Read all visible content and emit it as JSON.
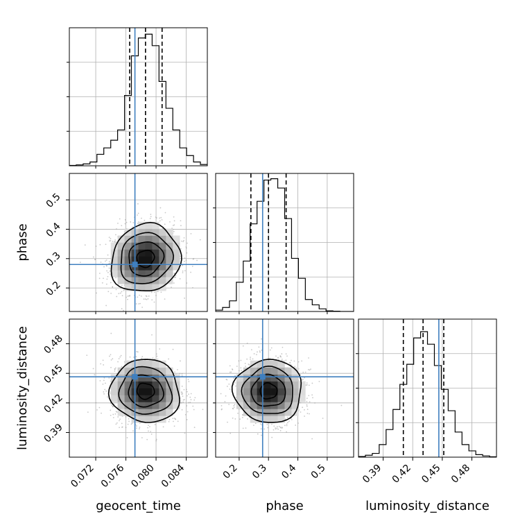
{
  "colors": {
    "background": "#ffffff",
    "truth": "#3f7fbf",
    "contour": "#000000",
    "grid": "#b0b0b0",
    "points": "#9a9a9a"
  },
  "chart_data": {
    "type": "corner",
    "grid": true,
    "parameters": [
      {
        "name": "geocent_time",
        "label": "geocent_time",
        "range": [
          0.0685,
          0.0868
        ],
        "ticks": [
          0.072,
          0.076,
          0.08,
          0.084
        ],
        "tick_labels": [
          "0.072",
          "0.076",
          "0.080",
          "0.084"
        ],
        "truth": 0.0772,
        "quantiles": [
          0.0765,
          0.0786,
          0.0808
        ],
        "histogram": {
          "edges": [
            0.0685,
            0.06941,
            0.07033,
            0.07124,
            0.07216,
            0.07307,
            0.07399,
            0.0749,
            0.07582,
            0.07673,
            0.07765,
            0.07856,
            0.07948,
            0.08039,
            0.08131,
            0.08222,
            0.08314,
            0.08405,
            0.08497,
            0.08588,
            0.0868
          ],
          "counts": [
            0.3,
            0.7,
            1.5,
            3,
            9,
            14,
            20,
            28,
            55,
            86,
            100,
            103,
            94,
            66,
            45,
            28,
            14,
            8,
            3,
            1
          ],
          "ylim": [
            0,
            108
          ]
        }
      },
      {
        "name": "phase",
        "label": "phase",
        "range": [
          0.12,
          0.59
        ],
        "ticks": [
          0.2,
          0.3,
          0.4,
          0.5
        ],
        "tick_labels": [
          "0.2",
          "0.3",
          "0.4",
          "0.5"
        ],
        "truth": 0.28,
        "quantiles": [
          0.24,
          0.3,
          0.36
        ],
        "histogram": {
          "edges": [
            0.12,
            0.1435,
            0.167,
            0.1905,
            0.214,
            0.2375,
            0.261,
            0.2845,
            0.308,
            0.3315,
            0.355,
            0.3785,
            0.402,
            0.4255,
            0.449,
            0.4725,
            0.496,
            0.5195,
            0.543,
            0.5665,
            0.59
          ],
          "counts": [
            1,
            3,
            8,
            22,
            38,
            66,
            83,
            99,
            100,
            93,
            70,
            40,
            25,
            9,
            5,
            2,
            0.5,
            0.2,
            0,
            0
          ],
          "ylim": [
            0,
            104
          ]
        }
      },
      {
        "name": "luminosity_distance",
        "label": "luminosity_distance",
        "range": [
          0.365,
          0.505
        ],
        "ticks": [
          0.39,
          0.42,
          0.45,
          0.48
        ],
        "tick_labels": [
          "0.39",
          "0.42",
          "0.45",
          "0.48"
        ],
        "truth": 0.4465,
        "quantiles": [
          0.4105,
          0.4305,
          0.4515
        ],
        "histogram": {
          "edges": [
            0.365,
            0.372,
            0.379,
            0.386,
            0.393,
            0.4,
            0.407,
            0.414,
            0.421,
            0.428,
            0.435,
            0.442,
            0.449,
            0.456,
            0.463,
            0.47,
            0.477,
            0.484,
            0.491,
            0.498,
            0.505
          ],
          "counts": [
            0.5,
            1.5,
            3,
            10,
            22,
            38,
            58,
            74,
            95,
            100,
            90,
            73,
            54,
            37,
            20,
            10,
            5,
            2,
            1,
            0.3
          ],
          "ylim": [
            0,
            110
          ]
        }
      }
    ],
    "pairs": [
      {
        "x": "geocent_time",
        "y": "phase",
        "center": [
          0.0786,
          0.3
        ],
        "sigma": [
          0.0023,
          0.058
        ],
        "rho": 0.1,
        "truth": [
          0.0772,
          0.28
        ]
      },
      {
        "x": "geocent_time",
        "y": "luminosity_distance",
        "center": [
          0.0786,
          0.432
        ],
        "sigma": [
          0.0023,
          0.016
        ],
        "rho": -0.05,
        "truth": [
          0.0772,
          0.4465
        ]
      },
      {
        "x": "phase",
        "y": "luminosity_distance",
        "center": [
          0.3,
          0.432
        ],
        "sigma": [
          0.058,
          0.016
        ],
        "rho": 0.0,
        "truth": [
          0.28,
          0.4465
        ]
      }
    ],
    "contour_levels_sigma": [
      0.5,
      1.0,
      1.5,
      2.0
    ]
  }
}
